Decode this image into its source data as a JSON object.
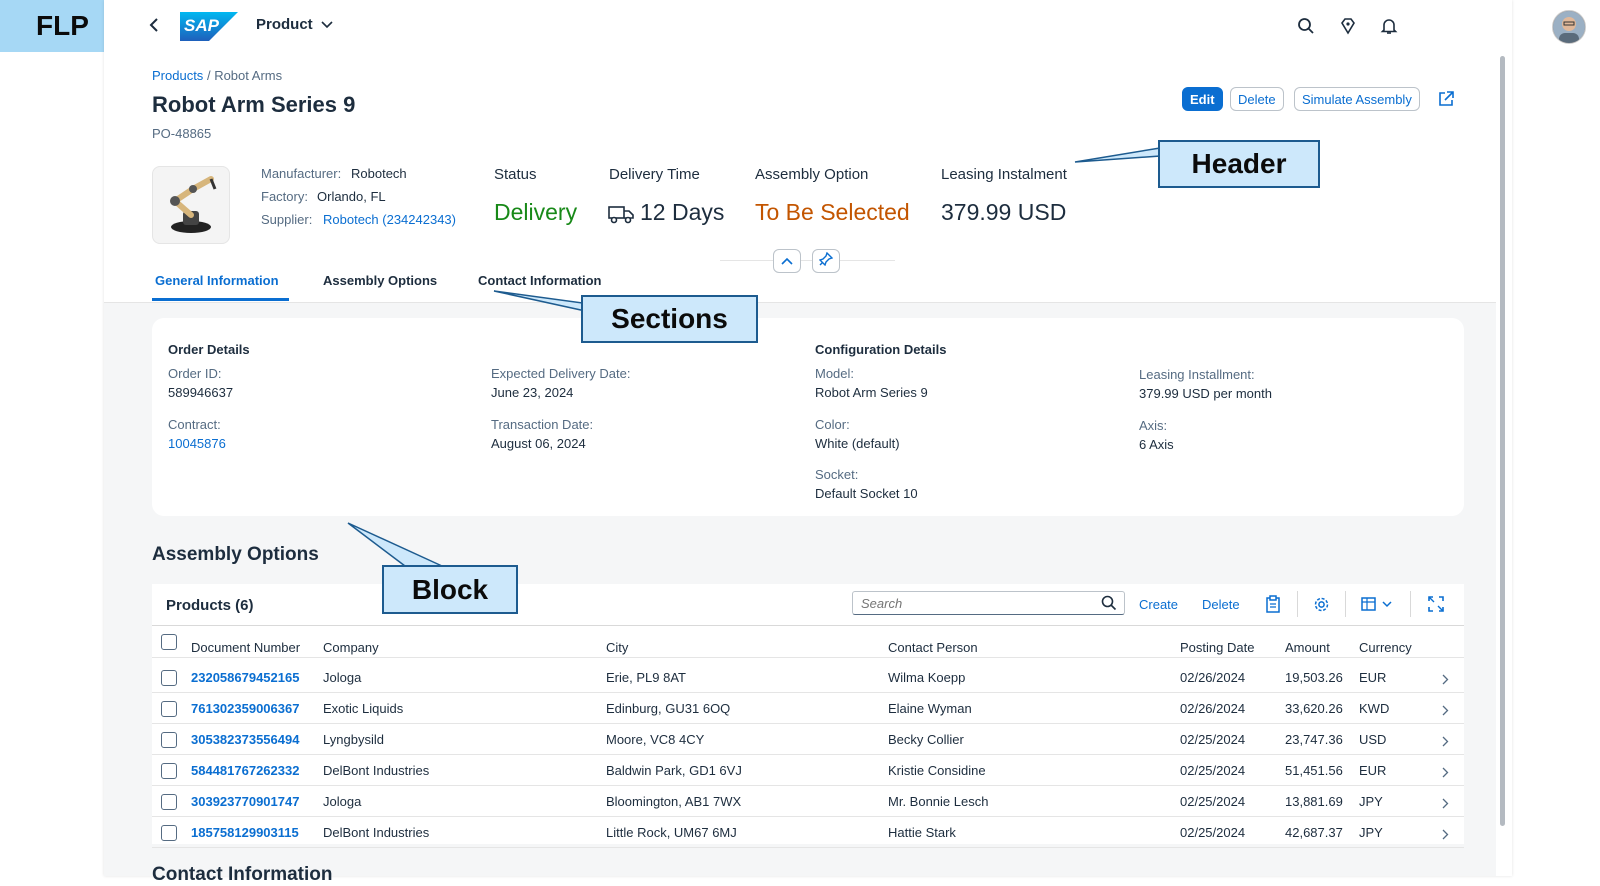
{
  "flp_label": "FLP",
  "shell": {
    "logo_text": "SAP",
    "app_title": "Product",
    "icons": [
      "back-icon",
      "search-icon",
      "diamond-icon",
      "bell-icon",
      "avatar"
    ]
  },
  "breadcrumb": {
    "link": "Products",
    "separator": "/",
    "current": "Robot Arms"
  },
  "object": {
    "title": "Robot Arm Series 9",
    "subtitle": "PO-48865"
  },
  "actions": {
    "edit": "Edit",
    "delete": "Delete",
    "simulate": "Simulate Assembly"
  },
  "header_facts": {
    "manufacturer_label": "Manufacturer:",
    "manufacturer": "Robotech",
    "factory_label": "Factory:",
    "factory": "Orlando, FL",
    "supplier_label": "Supplier:",
    "supplier": "Robotech (234242343)"
  },
  "kpis": {
    "status_label": "Status",
    "status_value": "Delivery",
    "delivery_label": "Delivery Time",
    "delivery_value": "12 Days",
    "assembly_label": "Assembly Option",
    "assembly_value": "To Be Selected",
    "leasing_label": "Leasing Instalment",
    "leasing_value": "379.99 USD"
  },
  "tabs": [
    "General Information",
    "Assembly Options",
    "Contact Information"
  ],
  "order_details": {
    "title": "Order Details",
    "order_id_label": "Order ID:",
    "order_id": "589946637",
    "contract_label": "Contract:",
    "contract": "10045876",
    "expected_label": "Expected Delivery Date:",
    "expected": "June 23, 2024",
    "transaction_label": "Transaction Date:",
    "transaction": "August 06, 2024"
  },
  "config_details": {
    "title": "Configuration Details",
    "model_label": "Model:",
    "model": "Robot Arm Series 9",
    "color_label": "Color:",
    "color": "White (default)",
    "socket_label": "Socket:",
    "socket": "Default Socket 10",
    "leasing_label": "Leasing Installment:",
    "leasing": "379.99 USD per month",
    "axis_label": "Axis:",
    "axis": "6 Axis"
  },
  "assembly": {
    "section_title": "Assembly Options",
    "table_title": "Products (6)",
    "search_placeholder": "Search",
    "create": "Create",
    "delete": "Delete",
    "columns": [
      "Document Number",
      "Company",
      "City",
      "Contact Person",
      "Posting Date",
      "Amount",
      "Currency"
    ],
    "rows": [
      {
        "doc": "232058679452165",
        "company": "Jologa",
        "city": "Erie, PL9 8AT",
        "contact": "Wilma Koepp",
        "date": "02/26/2024",
        "amount": "19,503.26",
        "currency": "EUR"
      },
      {
        "doc": "761302359006367",
        "company": "Exotic Liquids",
        "city": "Edinburg, GU31 6OQ",
        "contact": "Elaine Wyman",
        "date": "02/26/2024",
        "amount": "33,620.26",
        "currency": "KWD"
      },
      {
        "doc": "305382373556494",
        "company": "Lyngbysild",
        "city": "Moore, VC8 4CY",
        "contact": "Becky Collier",
        "date": "02/25/2024",
        "amount": "23,747.36",
        "currency": "USD"
      },
      {
        "doc": "584481767262332",
        "company": "DelBont Industries",
        "city": "Baldwin Park, GD1 6VJ",
        "contact": "Kristie Considine",
        "date": "02/25/2024",
        "amount": "51,451.56",
        "currency": "EUR"
      },
      {
        "doc": "303923770901747",
        "company": "Jologa",
        "city": "Bloomington, AB1 7WX",
        "contact": "Mr. Bonnie Lesch",
        "date": "02/25/2024",
        "amount": "13,881.69",
        "currency": "JPY"
      },
      {
        "doc": "185758129903115",
        "company": "DelBont Industries",
        "city": "Little Rock, UM67 6MJ",
        "contact": "Hattie Stark",
        "date": "02/25/2024",
        "amount": "42,687.37",
        "currency": "JPY"
      }
    ]
  },
  "next_section_title": "Contact Information",
  "callouts": {
    "header": "Header",
    "sections": "Sections",
    "block": "Block"
  },
  "colors": {
    "accent": "#0a6ed1",
    "positive": "#188918",
    "critical": "#c35500",
    "callout_fill": "#cde8fb",
    "callout_border": "#1d5b8f"
  }
}
